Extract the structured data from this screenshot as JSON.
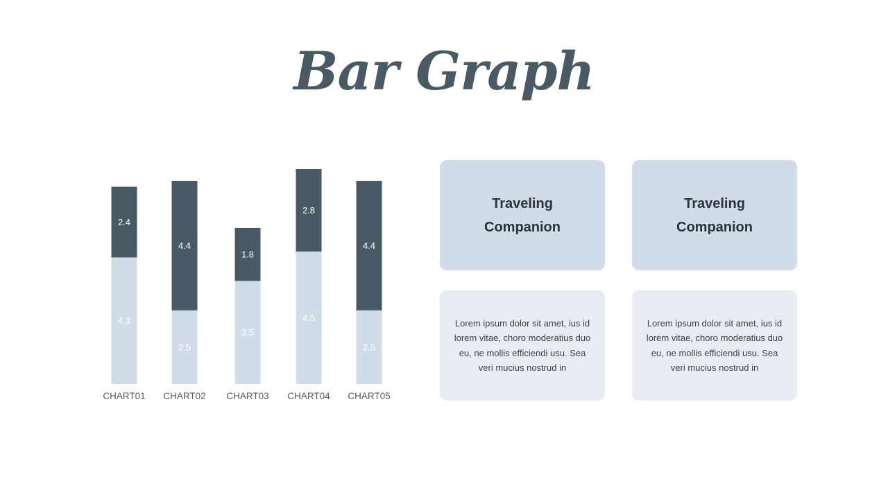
{
  "title": "Bar Graph",
  "colors": {
    "bottom": "#d1dce9",
    "top": "#4a5a64",
    "label": "#555a5f"
  },
  "cards": [
    {
      "heading": "Traveling\nCompanion",
      "text": "Lorem ipsum dolor sit amet, ius id lorem vitae, choro moderatius duo eu, ne mollis efficiendi usu. Sea veri mucius nostrud in"
    },
    {
      "heading": "Traveling\nCompanion",
      "text": "Lorem ipsum dolor sit amet, ius id lorem vitae, choro moderatius duo eu, ne mollis efficiendi usu. Sea veri mucius nostrud in"
    }
  ],
  "chart_data": {
    "type": "bar",
    "stacked": true,
    "categories": [
      "CHART01",
      "CHART02",
      "CHART03",
      "CHART04",
      "CHART05"
    ],
    "series": [
      {
        "values": [
          4.3,
          2.5,
          3.5,
          4.5,
          2.5
        ]
      },
      {
        "values": [
          2.4,
          4.4,
          1.8,
          2.8,
          4.4
        ]
      }
    ],
    "title": "",
    "xlabel": "",
    "ylabel": "",
    "ylim": [
      0,
      7.3
    ],
    "grid": false,
    "legend": "none"
  }
}
